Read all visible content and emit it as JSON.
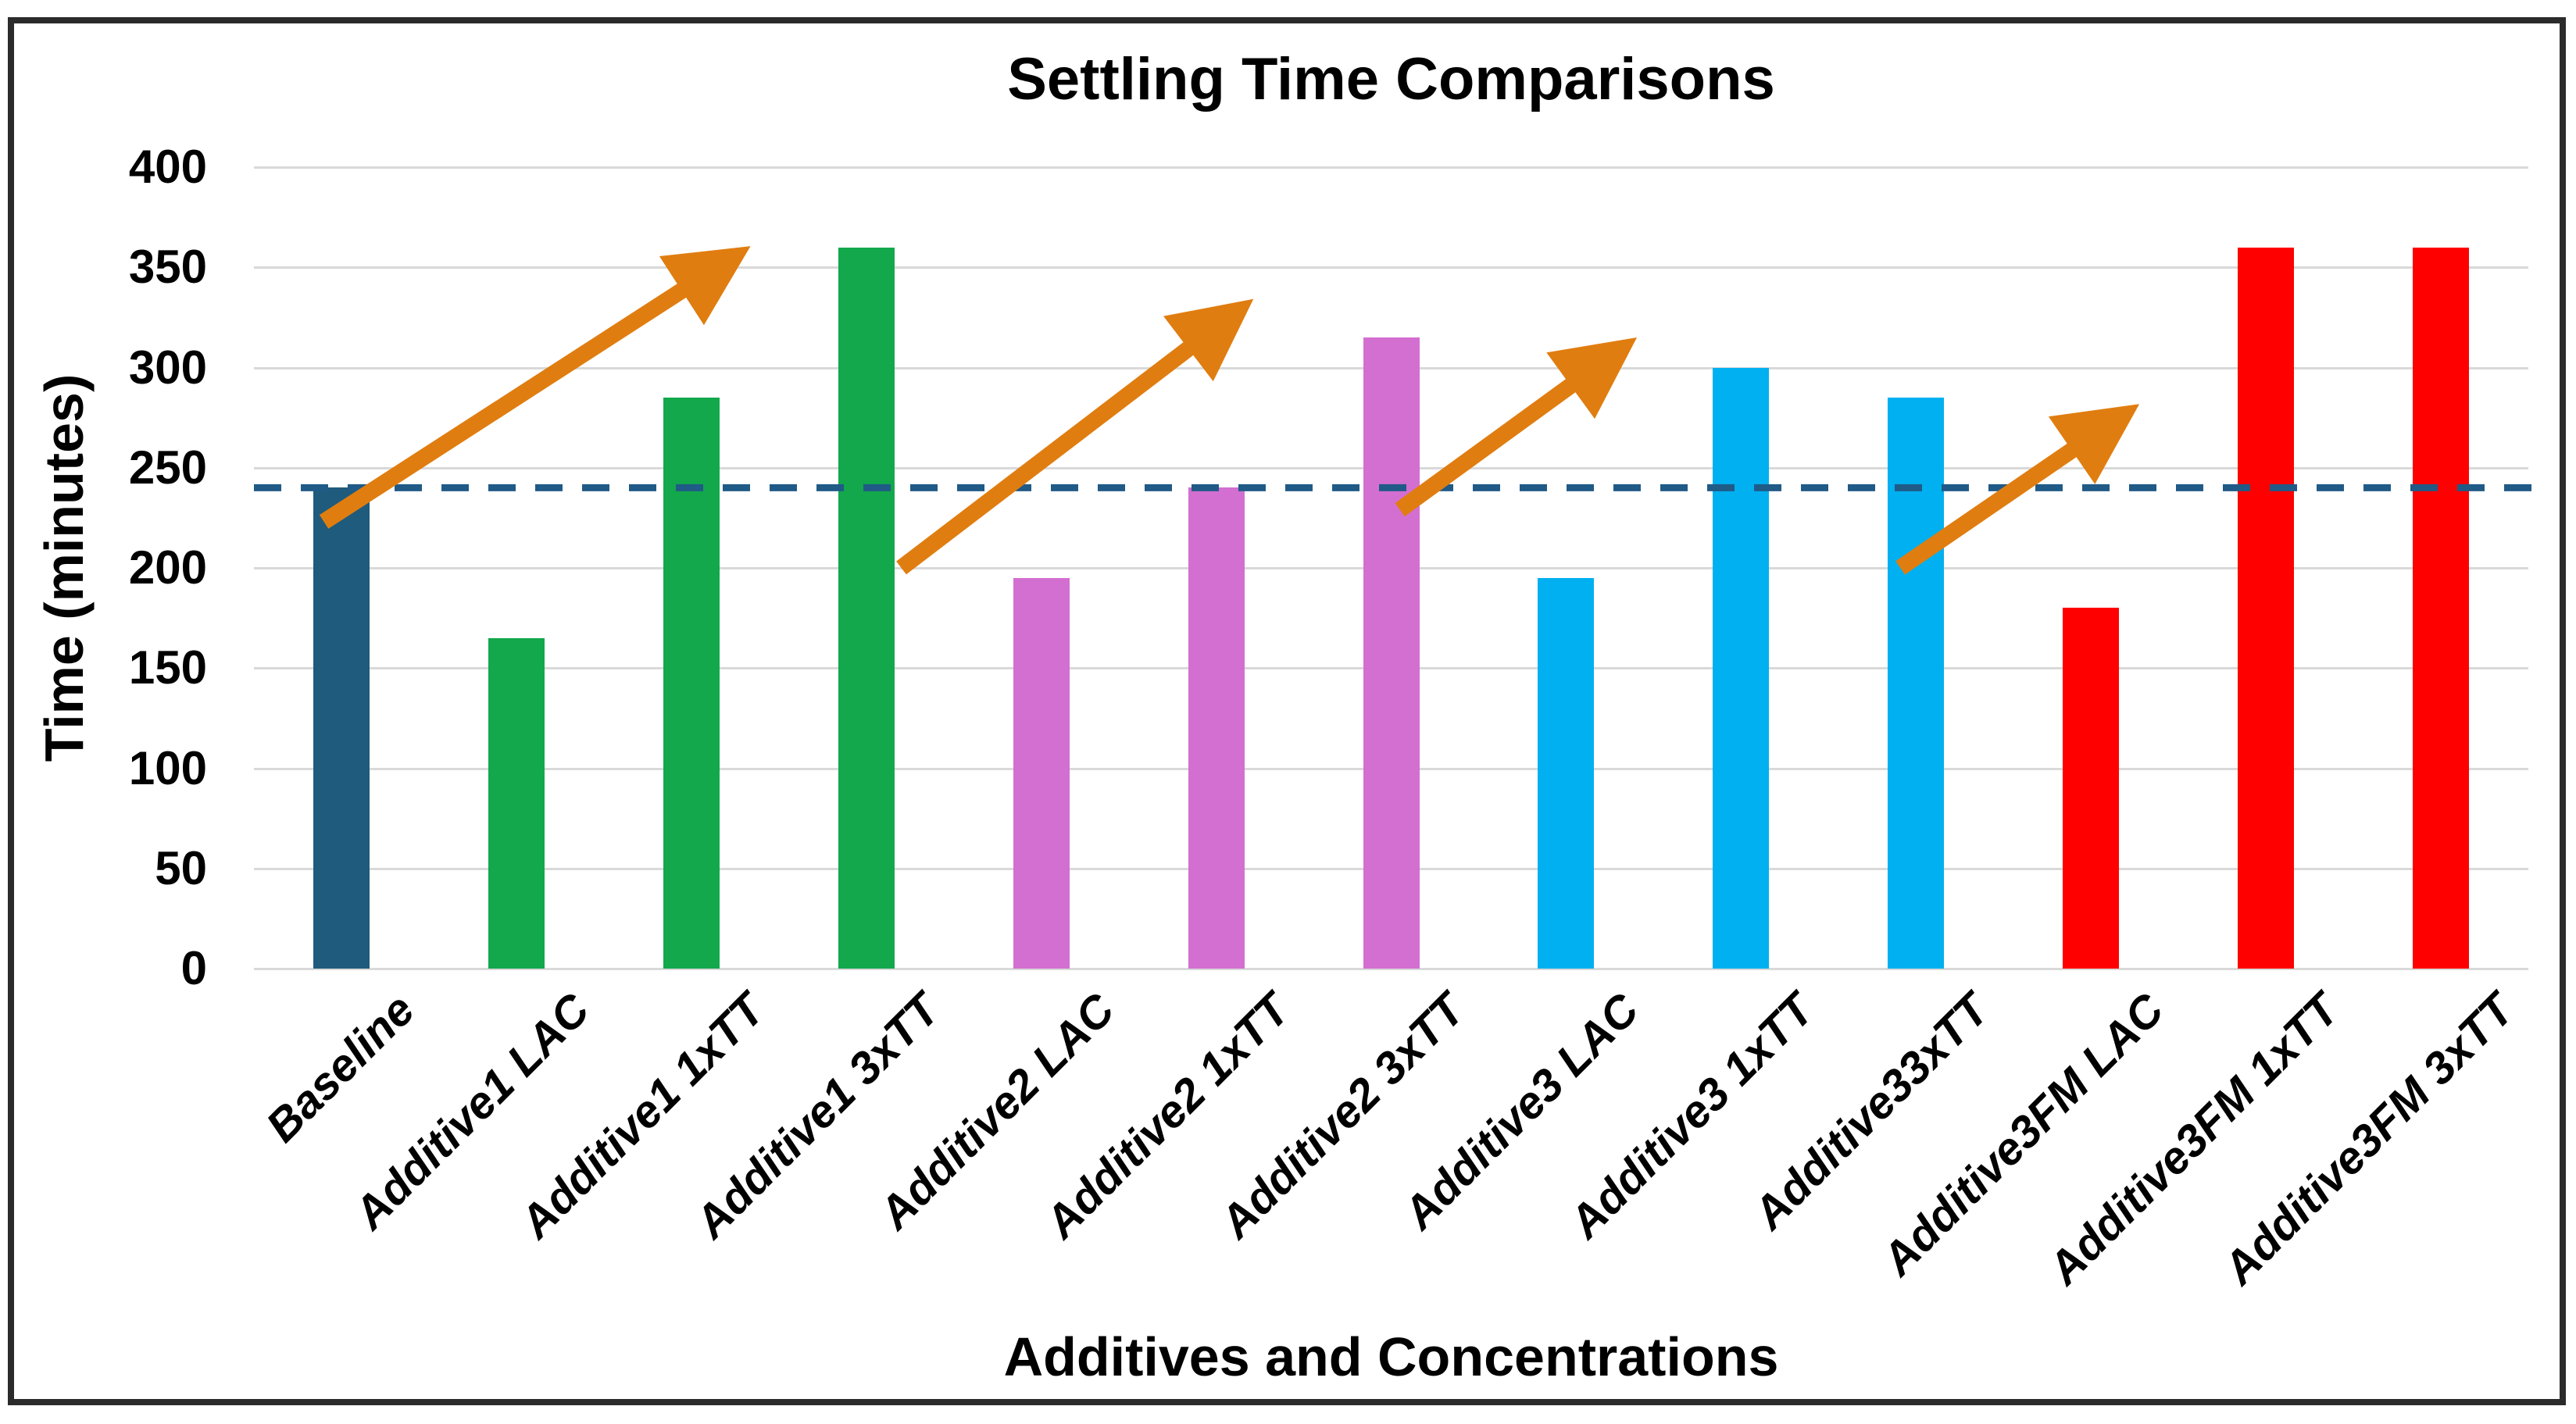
{
  "chart_data": {
    "type": "bar",
    "title": "Settling Time Comparisons",
    "xlabel": "Additives and Concentrations",
    "ylabel": "Time (minutes)",
    "ylim": [
      0,
      400
    ],
    "yticks": [
      0,
      50,
      100,
      150,
      200,
      250,
      300,
      350,
      400
    ],
    "grid": true,
    "legend": false,
    "categories": [
      "Baseline",
      "Additive1 LAC",
      "Additive1 1xTT",
      "Additive1 3xTT",
      "Additive2 LAC",
      "Additive2 1xTT",
      "Additive2 3xTT",
      "Additive3 LAC",
      "Additive3 1xTT",
      "Additive33xTT",
      "Additive3FM LAC",
      "Additive3FM 1xTT",
      "Additive3FM 3xTT"
    ],
    "values": [
      240,
      165,
      285,
      360,
      195,
      240,
      315,
      195,
      300,
      285,
      180,
      360,
      360
    ],
    "bar_colors": [
      "#1f5b7c",
      "#12a84b",
      "#12a84b",
      "#12a84b",
      "#d36fd0",
      "#d36fd0",
      "#d36fd0",
      "#00b0f0",
      "#00b0f0",
      "#00b0f0",
      "#ff0000",
      "#ff0000",
      "#ff0000"
    ],
    "reference_line": {
      "value": 240,
      "color": "#205a87",
      "style": "dashed"
    },
    "trend_arrows": {
      "color": "#e07d10",
      "arrows": [
        {
          "from_index": 0.4,
          "from_value": 223,
          "to_index": 2.74,
          "to_value": 355
        },
        {
          "from_index": 3.7,
          "from_value": 200,
          "to_index": 5.62,
          "to_value": 328
        },
        {
          "from_index": 6.55,
          "from_value": 229,
          "to_index": 7.81,
          "to_value": 309
        },
        {
          "from_index": 9.41,
          "from_value": 200,
          "to_index": 10.68,
          "to_value": 276
        }
      ]
    },
    "colors": {
      "gridline": "#d9d9d9",
      "text": "#000000",
      "frame_border": "#2b2b2b",
      "background": "#ffffff"
    }
  }
}
